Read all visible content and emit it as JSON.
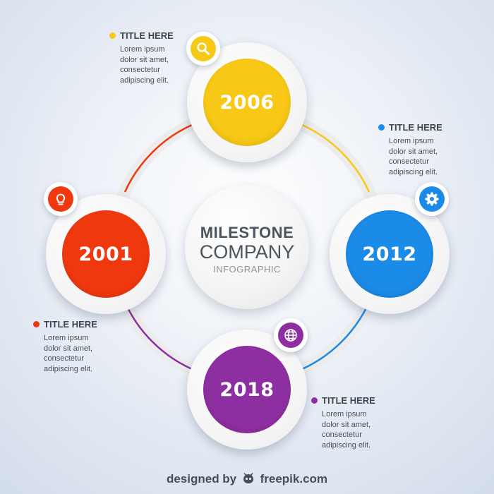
{
  "center": {
    "title": "MILESTONE",
    "subtitle": "COMPANY",
    "caption": "INFOGRAPHIC"
  },
  "milestones": [
    {
      "year": "2006",
      "color": "#f7c815",
      "icon": "magnifier-icon",
      "title": "TITLE HERE",
      "text": "Lorem ipsum\ndolor sit amet,\nconsectetur\nadipiscing elit."
    },
    {
      "year": "2012",
      "color": "#1b8be8",
      "icon": "gear-icon",
      "title": "TITLE HERE",
      "text": "Lorem ipsum\ndolor sit amet,\nconsectetur\nadipiscing elit."
    },
    {
      "year": "2018",
      "color": "#8e2fa1",
      "icon": "globe-icon",
      "title": "TITLE HERE",
      "text": "Lorem ipsum\ndolor sit amet,\nconsectetur\nadipiscing elit."
    },
    {
      "year": "2001",
      "color": "#f0380f",
      "icon": "lightbulb-icon",
      "title": "TITLE HERE",
      "text": "Lorem ipsum\ndolor sit amet,\nconsectetur\nadipiscing elit."
    }
  ],
  "credit": {
    "prefix": "designed by",
    "brand": "freepik.com"
  }
}
